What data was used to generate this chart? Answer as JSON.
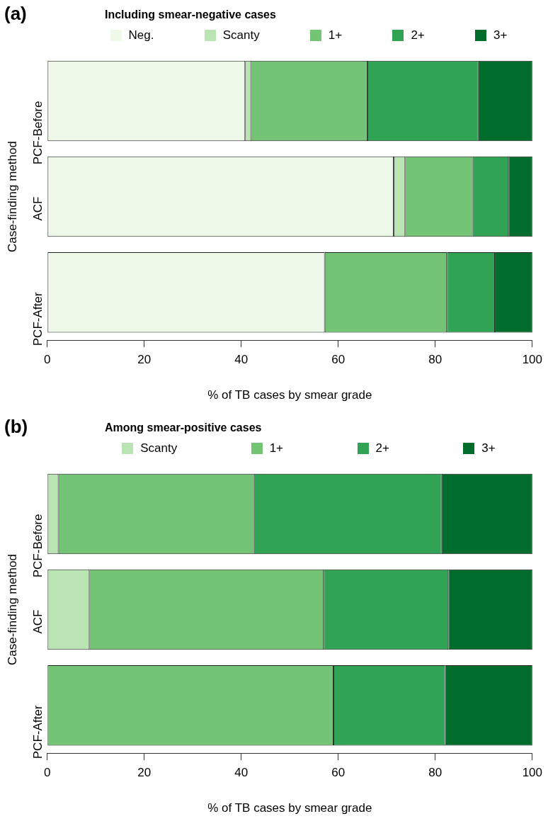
{
  "chart_data": [
    {
      "type": "bar",
      "title": "Including smear-negative cases",
      "annotations": [
        "(a)"
      ],
      "orientation": "horizontal",
      "stacked": true,
      "legend": "top",
      "categories": [
        "PCF-Before",
        "ACF",
        "PCF-After"
      ],
      "xlabel": "% of TB cases by smear grade",
      "ylabel": "Case-finding method",
      "xlim": [
        0,
        100
      ],
      "xticks": [
        0,
        20,
        40,
        60,
        80,
        100
      ],
      "series": [
        {
          "name": "Neg.",
          "color": "#edf8e9",
          "values": [
            40.8,
            71.4,
            57.2
          ]
        },
        {
          "name": "Scanty",
          "color": "#bae4b3",
          "values": [
            1.2,
            2.4,
            0
          ]
        },
        {
          "name": "1+",
          "color": "#74c476",
          "values": [
            24.0,
            13.9,
            25.2
          ]
        },
        {
          "name": "2+",
          "color": "#31a354",
          "values": [
            22.9,
            7.4,
            9.9
          ]
        },
        {
          "name": "3+",
          "color": "#006d2c",
          "values": [
            11.1,
            4.9,
            7.7
          ]
        }
      ]
    },
    {
      "type": "bar",
      "title": "Among smear-positive cases",
      "annotations": [
        "(b)"
      ],
      "orientation": "horizontal",
      "stacked": true,
      "legend": "top",
      "categories": [
        "PCF-Before",
        "ACF",
        "PCF-After"
      ],
      "xlabel": "% of TB cases by smear grade",
      "ylabel": "Case-finding method",
      "xlim": [
        0,
        100
      ],
      "xticks": [
        0,
        20,
        40,
        60,
        80,
        100
      ],
      "series": [
        {
          "name": "Scanty",
          "color": "#bae4b3",
          "values": [
            2.3,
            8.7,
            0
          ]
        },
        {
          "name": "1+",
          "color": "#74c476",
          "values": [
            40.3,
            48.3,
            59.0
          ]
        },
        {
          "name": "2+",
          "color": "#31a354",
          "values": [
            38.7,
            25.7,
            23.0
          ]
        },
        {
          "name": "3+",
          "color": "#006d2c",
          "values": [
            18.7,
            17.3,
            18.0
          ]
        }
      ]
    }
  ]
}
